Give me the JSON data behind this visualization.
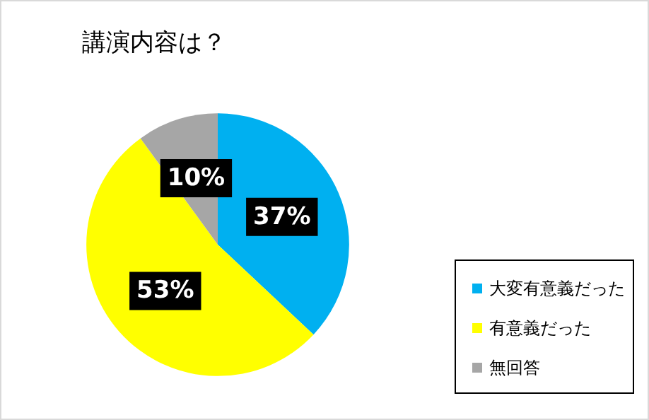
{
  "chart_data": {
    "type": "pie",
    "title": "講演内容は？",
    "categories": [
      "大変有意義だった",
      "有意義だった",
      "無回答"
    ],
    "values": [
      37,
      53,
      10
    ],
    "colors": [
      "#00b0f0",
      "#ffff00",
      "#a6a6a6"
    ],
    "value_labels": [
      "37%",
      "53%",
      "10%"
    ],
    "legend": "bottom right"
  }
}
